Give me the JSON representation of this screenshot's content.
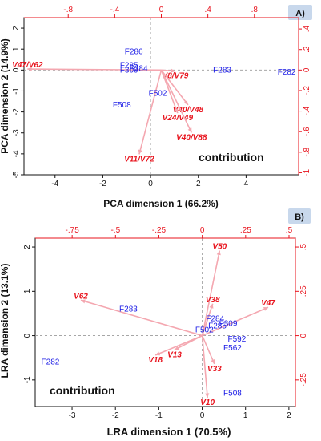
{
  "chart_data": [
    {
      "type": "scatter",
      "panel_label": "A)",
      "annotation": "contribution",
      "xlabel": "PCA dimension 1 (66.2%)",
      "ylabel": "PCA dimension 2 (14.9%)",
      "xlim": [
        -5.3,
        6.2
      ],
      "ylim": [
        -5,
        2.5
      ],
      "xticks": [
        -4,
        -2,
        0,
        2,
        4
      ],
      "yticks": [
        -5,
        -4,
        -3,
        -2,
        -1,
        0,
        1,
        2
      ],
      "x2ticks": [
        -0.8,
        -0.4,
        0,
        0.4,
        0.8
      ],
      "x2lim": [
        -1.18,
        1.18
      ],
      "y2ticks": [
        -1,
        -0.8,
        -0.6,
        -0.4,
        -0.2,
        0,
        0.2,
        0.4
      ],
      "y2lim": [
        -1.02,
        0.51
      ],
      "observations": [
        {
          "label": "F286",
          "x": -0.7,
          "y": 0.88
        },
        {
          "label": "F285",
          "x": -0.9,
          "y": 0.22
        },
        {
          "label": "F284",
          "x": -0.5,
          "y": 0.07
        },
        {
          "label": "F309",
          "x": -0.9,
          "y": 0.0
        },
        {
          "label": "F283",
          "x": 3.0,
          "y": 0.0
        },
        {
          "label": "F282",
          "x": 5.7,
          "y": -0.1
        },
        {
          "label": "F502",
          "x": 0.3,
          "y": -1.12
        },
        {
          "label": "F508",
          "x": -1.2,
          "y": -1.67
        }
      ],
      "loadings": [
        {
          "label": "V47/V62",
          "x": -1.15,
          "y": 0.01
        },
        {
          "label": "V8/V79",
          "x": 0.12,
          "y": -0.01
        },
        {
          "label": "V40/V48",
          "x": 0.23,
          "y": -0.34
        },
        {
          "label": "V24/V49",
          "x": 0.14,
          "y": -0.42
        },
        {
          "label": "V40/V88",
          "x": 0.26,
          "y": -0.61
        },
        {
          "label": "V11/V72",
          "x": -0.19,
          "y": -0.82
        }
      ]
    },
    {
      "type": "scatter",
      "panel_label": "B)",
      "annotation": "contribution",
      "xlabel": "LRA dimension 1 (70.5%)",
      "ylabel": "LRA dimension 2 (13.1%)",
      "xlim": [
        -3.85,
        2.15
      ],
      "ylim": [
        -1.6,
        2.2
      ],
      "xticks": [
        -3,
        -2,
        -1,
        0,
        1,
        2
      ],
      "yticks": [
        -1,
        0,
        1,
        2
      ],
      "x2ticks": [
        -0.75,
        -0.5,
        -0.25,
        0,
        0.25,
        0.5
      ],
      "x2lim": [
        -0.963,
        0.537
      ],
      "y2ticks": [
        -0.25,
        0,
        0.25,
        0.5
      ],
      "y2lim": [
        -0.4,
        0.55
      ],
      "observations": [
        {
          "label": "F283",
          "x": -1.7,
          "y": 0.6
        },
        {
          "label": "F282",
          "x": -3.5,
          "y": -0.6
        },
        {
          "label": "F284",
          "x": 0.3,
          "y": 0.38
        },
        {
          "label": "F285",
          "x": 0.35,
          "y": 0.22
        },
        {
          "label": "F309",
          "x": 0.6,
          "y": 0.27
        },
        {
          "label": "F502",
          "x": 0.05,
          "y": 0.13
        },
        {
          "label": "F592",
          "x": 0.8,
          "y": -0.08
        },
        {
          "label": "F562",
          "x": 0.7,
          "y": -0.28
        },
        {
          "label": "F508",
          "x": 0.7,
          "y": -1.3
        }
      ],
      "loadings": [
        {
          "label": "V50",
          "x": 0.1,
          "y": 0.48
        },
        {
          "label": "V38",
          "x": 0.06,
          "y": 0.18
        },
        {
          "label": "V47",
          "x": 0.38,
          "y": 0.16
        },
        {
          "label": "V62",
          "x": -0.7,
          "y": 0.2
        },
        {
          "label": "V13",
          "x": -0.16,
          "y": -0.08
        },
        {
          "label": "V18",
          "x": -0.27,
          "y": -0.11
        },
        {
          "label": "V33",
          "x": 0.07,
          "y": -0.16
        },
        {
          "label": "V10",
          "x": 0.03,
          "y": -0.35
        }
      ]
    }
  ]
}
